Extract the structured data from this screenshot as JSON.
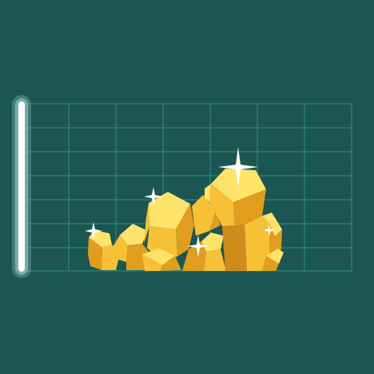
{
  "colors": {
    "background": "#1b5650",
    "grid_line": "#2f8e85",
    "bar_glow": "#8fc3bd",
    "bar_core": "#ffffff",
    "gold_light": "#fde36a",
    "gold_mid": "#f7c136",
    "gold_dark": "#e09d1e",
    "gold_shadow": "#cf8c1a",
    "sparkle": "#ffffff"
  },
  "icons": {
    "level_bar": "vertical-level-bar-icon",
    "gold_pile": "gold-nugget-pile-icon",
    "sparkle": "sparkle-icon"
  }
}
